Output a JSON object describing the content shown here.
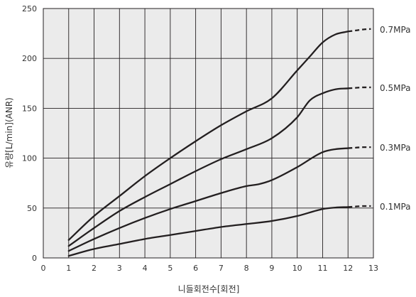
{
  "chart_data": {
    "type": "line",
    "xlabel": "니들회전수[회전]",
    "ylabel": "유량[L/min](ANR)",
    "xlim": [
      0,
      13
    ],
    "ylim": [
      0,
      250
    ],
    "x_ticks": [
      0,
      1,
      2,
      3,
      4,
      5,
      6,
      7,
      8,
      9,
      10,
      11,
      12,
      13
    ],
    "y_ticks": [
      0,
      50,
      100,
      150,
      200,
      250
    ],
    "grid": true,
    "plot_background": "#ebebeb",
    "line_color": "#231f20",
    "series": [
      {
        "name": "0.7MPa",
        "solid_x": [
          1,
          2,
          3,
          4,
          5,
          6,
          7,
          8,
          9,
          10,
          10.5,
          11,
          11.5,
          12
        ],
        "solid_y": [
          18,
          42,
          62,
          82,
          100,
          117,
          133,
          147,
          160,
          188,
          202,
          216,
          224,
          227
        ],
        "dashed_x": [
          12,
          12.3,
          12.6,
          12.9
        ],
        "dashed_y": [
          227,
          228,
          229,
          229.5
        ]
      },
      {
        "name": "0.5MPa",
        "solid_x": [
          1,
          2,
          3,
          4,
          5,
          6,
          7,
          8,
          9,
          10,
          10.5,
          11,
          11.5,
          12
        ],
        "solid_y": [
          12,
          30,
          47,
          61,
          74,
          87,
          99,
          109,
          120,
          141,
          158,
          165,
          169,
          170
        ],
        "dashed_x": [
          12,
          12.3,
          12.6,
          12.9
        ],
        "dashed_y": [
          170,
          170.5,
          171,
          171
        ]
      },
      {
        "name": "0.3MPa",
        "solid_x": [
          1,
          2,
          3,
          4,
          5,
          6,
          7,
          8,
          8.5,
          9,
          10,
          11,
          11.5,
          12
        ],
        "solid_y": [
          7,
          19,
          30,
          40,
          49,
          57,
          65,
          72,
          74,
          78,
          91,
          106,
          109,
          110
        ],
        "dashed_x": [
          12,
          12.3,
          12.6,
          12.9
        ],
        "dashed_y": [
          110,
          110.5,
          111,
          111
        ]
      },
      {
        "name": "0.1MPa",
        "solid_x": [
          1,
          2,
          3,
          4,
          5,
          6,
          7,
          8,
          9,
          10,
          11,
          11.5,
          12
        ],
        "solid_y": [
          2,
          9,
          14,
          19,
          23,
          27,
          31,
          34,
          37,
          42,
          49,
          50.5,
          51
        ],
        "dashed_x": [
          12,
          12.3,
          12.6,
          12.9
        ],
        "dashed_y": [
          51,
          51.5,
          52,
          52
        ]
      }
    ]
  }
}
